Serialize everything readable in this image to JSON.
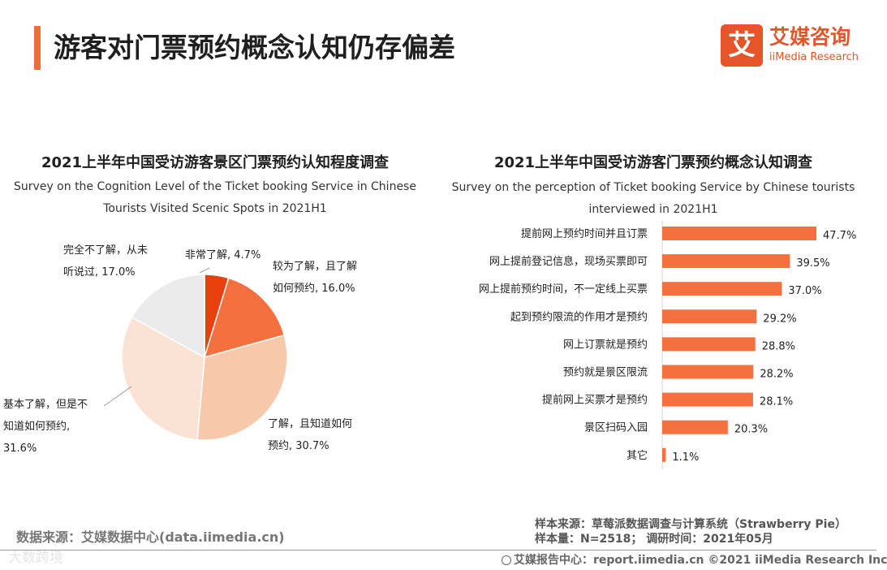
{
  "header": {
    "title": "游客对门票预约概念认知仍存偏差",
    "logo_mark": "艾",
    "logo_cn": "艾媒咨询",
    "logo_en": "iiMedia Research"
  },
  "chart_data": [
    {
      "type": "pie",
      "title": "2021上半年中国受访游客景区门票预约认知程度调查",
      "subtitle_line1": "Survey on the Cognition Level of the Ticket booking Service in Chinese",
      "subtitle_line2": "Tourists Visited Scenic Spots in 2021H1",
      "slices": [
        {
          "label": "非常了解",
          "value": 4.7,
          "color": "#e8400f",
          "lines": [
            "非常了解, 4.7%"
          ]
        },
        {
          "label": "较为了解，且了解如何预约",
          "value": 16.0,
          "color": "#f5703f",
          "lines": [
            "较为了解，且了解",
            "如何预约, 16.0%"
          ]
        },
        {
          "label": "了解，且知道如何预约",
          "value": 30.7,
          "color": "#f8c8aa",
          "lines": [
            "了解，且知道如何",
            "预约, 30.7%"
          ]
        },
        {
          "label": "基本了解，但是不知道如何预约",
          "value": 31.6,
          "color": "#fae2d4",
          "lines": [
            "基本了解，但是不",
            "知道如何预约,",
            "31.6%"
          ]
        },
        {
          "label": "完全不了解，从未听说过",
          "value": 17.0,
          "color": "#ebebeb",
          "lines": [
            "完全不了解，从未",
            "听说过, 17.0%"
          ]
        }
      ]
    },
    {
      "type": "bar",
      "orientation": "horizontal",
      "title": "2021上半年中国受访游客门票预约概念认知调查",
      "subtitle_line1": "Survey on the perception of  Ticket booking Service by Chinese tourists",
      "subtitle_line2": "interviewed in 2021H1",
      "categories": [
        "提前网上预约时间并且订票",
        "网上提前登记信息，现场买票即可",
        "网上提前预约时间，不一定线上买票",
        "起到预约限流的作用才是预约",
        "网上订票就是预约",
        "预约就是景区限流",
        "提前网上买票才是预约",
        "景区扫码入园",
        "其它"
      ],
      "values": [
        47.7,
        39.5,
        37.0,
        29.2,
        28.8,
        28.2,
        28.1,
        20.3,
        1.1
      ],
      "value_labels": [
        "47.7%",
        "39.5%",
        "37.0%",
        "29.2%",
        "28.8%",
        "28.2%",
        "28.1%",
        "20.3%",
        "1.1%"
      ],
      "bar_color": "#f5703f",
      "xlim": [
        0,
        50
      ]
    }
  ],
  "footer": {
    "source": "数据来源：艾媒数据中心(data.iimedia.cn)",
    "sample_source": "样本来源：草莓派数据调查与计算系统（Strawberry  Pie）",
    "sample_size": "样本量：N=2518；  调研时间：2021年05月",
    "report": "艾媒报告中心：report.iimedia.cn    ©2021  iiMedia Research  Inc",
    "watermark": "大数跨境"
  }
}
